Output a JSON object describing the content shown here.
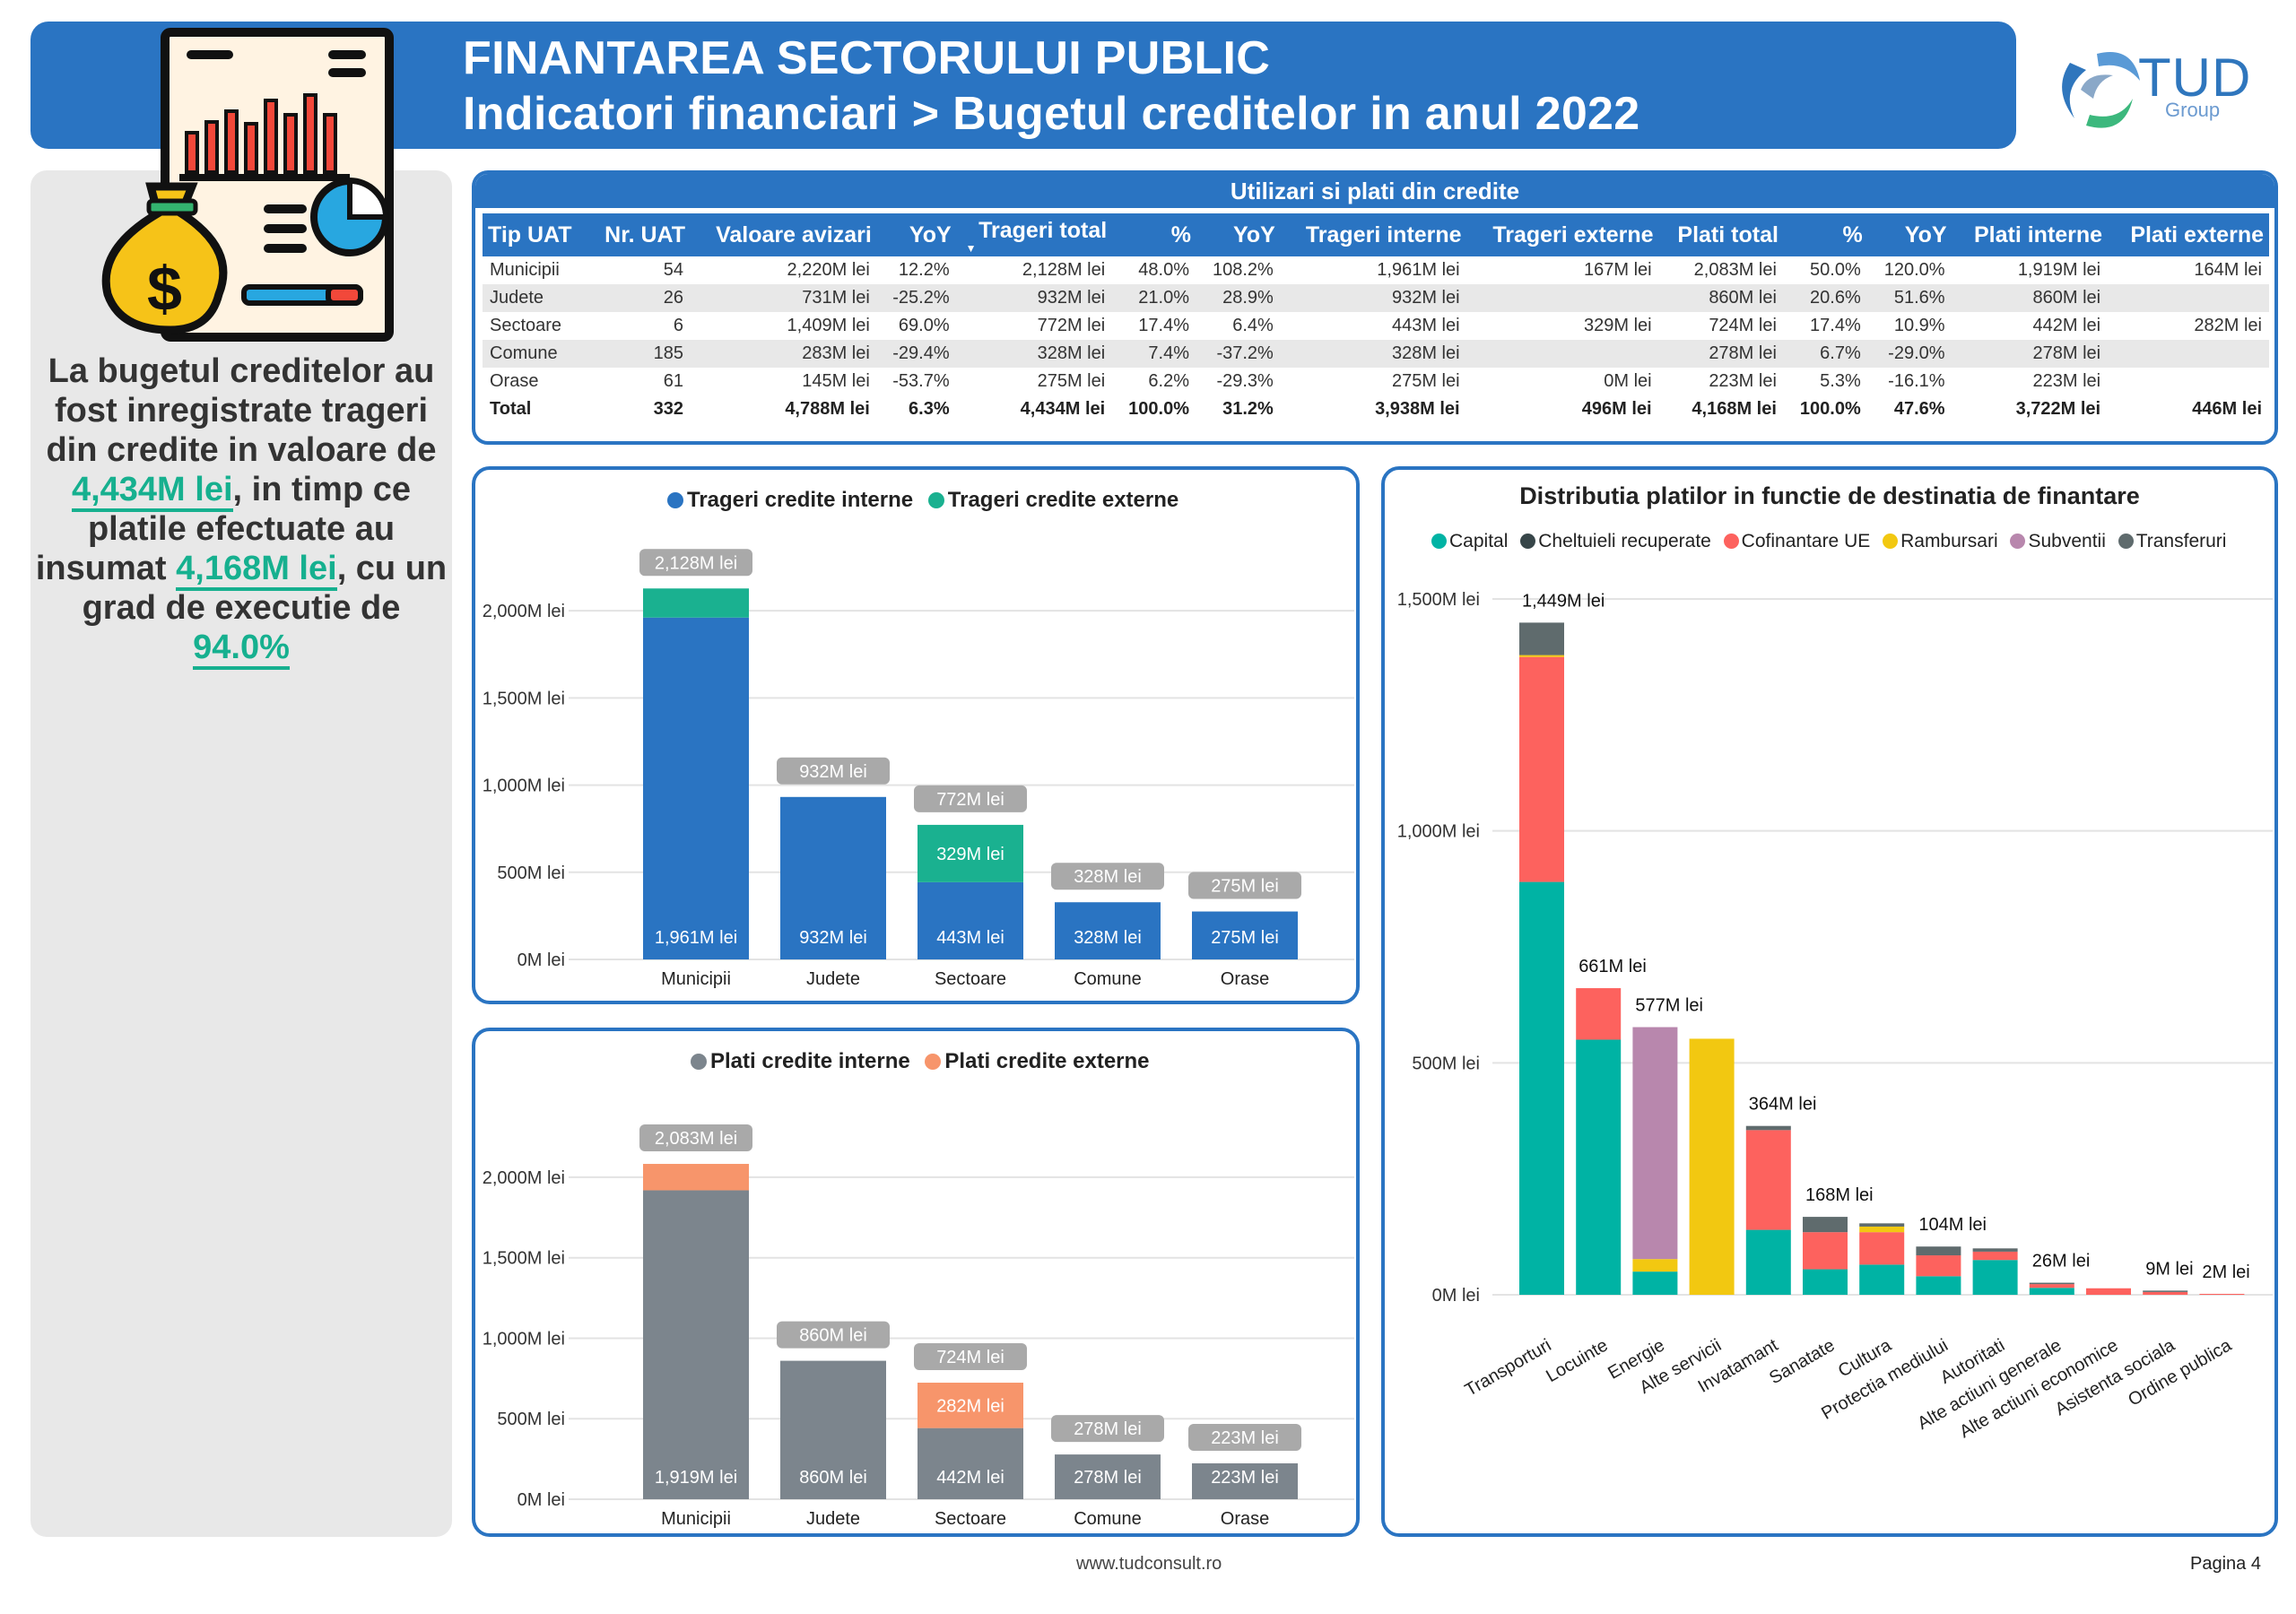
{
  "header": {
    "title": "FINANTAREA SECTORULUI PUBLIC",
    "subtitle": "Indicatori financiari > Bugetul creditelor in anul 2022"
  },
  "logo": {
    "name": "TUD",
    "sub": "Group"
  },
  "summary": {
    "p1": "La bugetul creditelor au fost inregistrate trageri din credite in valoare de",
    "v1": "4,434M lei",
    "p2": ", in timp ce platile efectuate au insumat",
    "v2": "4,168M lei",
    "p3": ", cu un grad de executie de",
    "v3": "94.0%"
  },
  "table": {
    "title": "Utilizari si plati din credite",
    "headers": [
      "Tip UAT",
      "Nr. UAT",
      "Valoare avizari",
      "YoY",
      "Trageri total",
      "%",
      "YoY",
      "Trageri interne",
      "Trageri externe",
      "Plati total",
      "%",
      "YoY",
      "Plati interne",
      "Plati externe"
    ],
    "rows": [
      [
        "Municipii",
        "54",
        "2,220M lei",
        "12.2%",
        "2,128M lei",
        "48.0%",
        "108.2%",
        "1,961M lei",
        "167M lei",
        "2,083M lei",
        "50.0%",
        "120.0%",
        "1,919M lei",
        "164M lei"
      ],
      [
        "Judete",
        "26",
        "731M lei",
        "-25.2%",
        "932M lei",
        "21.0%",
        "28.9%",
        "932M lei",
        "",
        "860M lei",
        "20.6%",
        "51.6%",
        "860M lei",
        ""
      ],
      [
        "Sectoare",
        "6",
        "1,409M lei",
        "69.0%",
        "772M lei",
        "17.4%",
        "6.4%",
        "443M lei",
        "329M lei",
        "724M lei",
        "17.4%",
        "10.9%",
        "442M lei",
        "282M lei"
      ],
      [
        "Comune",
        "185",
        "283M lei",
        "-29.4%",
        "328M lei",
        "7.4%",
        "-37.2%",
        "328M lei",
        "",
        "278M lei",
        "6.7%",
        "-29.0%",
        "278M lei",
        ""
      ],
      [
        "Orase",
        "61",
        "145M lei",
        "-53.7%",
        "275M lei",
        "6.2%",
        "-29.3%",
        "275M lei",
        "0M lei",
        "223M lei",
        "5.3%",
        "-16.1%",
        "223M lei",
        ""
      ]
    ],
    "total": [
      "Total",
      "332",
      "4,788M lei",
      "6.3%",
      "4,434M lei",
      "100.0%",
      "31.2%",
      "3,938M lei",
      "496M lei",
      "4,168M lei",
      "100.0%",
      "47.6%",
      "3,722M lei",
      "446M lei"
    ]
  },
  "colors": {
    "blue": "#2a74c2",
    "teal": "#1ab190",
    "gray": "#7c858d",
    "salmon": "#f7956b",
    "capital": "#00b3a4",
    "cheltuieli": "#374649",
    "cofinantare": "#fd625e",
    "rambursari": "#f2c811",
    "subventii": "#b887ad",
    "transferuri": "#5f6b6d"
  },
  "chart_data": [
    {
      "type": "bar",
      "stacked": true,
      "categories": [
        "Municipii",
        "Judete",
        "Sectoare",
        "Comune",
        "Orase"
      ],
      "series": [
        {
          "name": "Trageri credite interne",
          "values": [
            1961,
            932,
            443,
            328,
            275
          ],
          "labels": [
            "1,961M lei",
            "932M lei",
            "443M lei",
            "328M lei",
            "275M lei"
          ]
        },
        {
          "name": "Trageri credite externe",
          "values": [
            167,
            0,
            329,
            0,
            0
          ],
          "labels": [
            "",
            "",
            "329M lei",
            "",
            ""
          ]
        }
      ],
      "totals": [
        "2,128M lei",
        "932M lei",
        "772M lei",
        "328M lei",
        "275M lei"
      ],
      "yticks": [
        "2,000M lei",
        "1,500M lei",
        "1,000M lei",
        "500M lei",
        "0M lei"
      ],
      "ytick_values": [
        2000,
        1500,
        1000,
        500,
        0
      ],
      "ylim": [
        0,
        2150
      ],
      "legend": "top",
      "grid": true
    },
    {
      "type": "bar",
      "stacked": true,
      "categories": [
        "Municipii",
        "Judete",
        "Sectoare",
        "Comune",
        "Orase"
      ],
      "series": [
        {
          "name": "Plati credite interne",
          "values": [
            1919,
            860,
            442,
            278,
            223
          ],
          "labels": [
            "1,919M lei",
            "860M lei",
            "442M lei",
            "278M lei",
            "223M lei"
          ]
        },
        {
          "name": "Plati credite externe",
          "values": [
            164,
            0,
            282,
            0,
            0
          ],
          "labels": [
            "",
            "",
            "282M lei",
            "",
            ""
          ]
        }
      ],
      "totals": [
        "2,083M lei",
        "860M lei",
        "724M lei",
        "278M lei",
        "223M lei"
      ],
      "yticks": [
        "2,000M lei",
        "1,500M lei",
        "1,000M lei",
        "500M lei",
        "0M lei"
      ],
      "ytick_values": [
        2000,
        1500,
        1000,
        500,
        0
      ],
      "ylim": [
        0,
        2150
      ],
      "legend": "top",
      "grid": true
    },
    {
      "type": "bar",
      "stacked": true,
      "title": "Distributia platilor in functie de destinatia de finantare",
      "categories": [
        "Transporturi",
        "Locuinte",
        "Energie",
        "Alte servicii",
        "Invatamant",
        "Sanatate",
        "Cultura",
        "Protectia mediului",
        "Autoritati",
        "Alte actiuni generale",
        "Alte actiuni economice",
        "Asistenta sociala",
        "Ordine publica"
      ],
      "series": [
        {
          "name": "Capital",
          "values": [
            890,
            550,
            50,
            0,
            140,
            55,
            65,
            40,
            75,
            15,
            0,
            0,
            0
          ]
        },
        {
          "name": "Cheltuieli recuperate",
          "values": [
            0,
            0,
            0,
            0,
            0,
            0,
            0,
            0,
            0,
            0,
            0,
            0,
            0
          ]
        },
        {
          "name": "Cofinantare UE",
          "values": [
            485,
            111,
            0,
            0,
            215,
            80,
            70,
            45,
            18,
            8,
            14,
            6,
            2
          ]
        },
        {
          "name": "Rambursari",
          "values": [
            4,
            0,
            27,
            552,
            0,
            0,
            12,
            0,
            0,
            0,
            0,
            0,
            0
          ]
        },
        {
          "name": "Subventii",
          "values": [
            0,
            0,
            500,
            0,
            0,
            0,
            0,
            0,
            0,
            0,
            0,
            0,
            0
          ]
        },
        {
          "name": "Transferuri",
          "values": [
            70,
            0,
            0,
            0,
            9,
            33,
            7,
            19,
            7,
            3,
            0,
            3,
            0
          ]
        }
      ],
      "totals": [
        "1,449M lei",
        "661M lei",
        "577M lei",
        "",
        "364M lei",
        "168M lei",
        "",
        "104M lei",
        "",
        "26M lei",
        "",
        "9M lei",
        "2M lei"
      ],
      "yticks": [
        "1,500M lei",
        "1,000M lei",
        "500M lei",
        "0M lei"
      ],
      "ytick_values": [
        1500,
        1000,
        500,
        0
      ],
      "ylim": [
        0,
        1500
      ],
      "legend": "top",
      "grid": true
    }
  ],
  "footer": {
    "url": "www.tudconsult.ro",
    "page": "Pagina 4"
  }
}
